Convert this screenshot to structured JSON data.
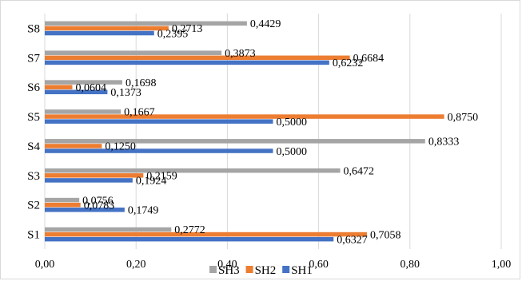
{
  "chart_data": {
    "type": "bar",
    "orientation": "horizontal",
    "categories": [
      "S1",
      "S2",
      "S3",
      "S4",
      "S5",
      "S6",
      "S7",
      "S8"
    ],
    "series": [
      {
        "name": "SH3",
        "color": "#a5a5a5",
        "values": [
          0.2772,
          0.0756,
          0.6472,
          0.8333,
          0.1667,
          0.1698,
          0.3873,
          0.4429
        ],
        "labels": [
          "0,2772",
          "0,0756",
          "0,6472",
          "0,8333",
          "0,1667",
          "0,1698",
          "0,3873",
          "0,4429"
        ]
      },
      {
        "name": "SH2",
        "color": "#ed7d31",
        "values": [
          0.7058,
          0.0783,
          0.2159,
          0.125,
          0.875,
          0.0604,
          0.6684,
          0.2713
        ],
        "labels": [
          "0,7058",
          "0,0783",
          "0,2159",
          "0,1250",
          "0,8750",
          "0,0604",
          "0,6684",
          "0,2713"
        ]
      },
      {
        "name": "SH1",
        "color": "#4472c4",
        "values": [
          0.6327,
          0.1749,
          0.1924,
          0.5,
          0.5,
          0.1373,
          0.6232,
          0.2395
        ],
        "labels": [
          "0,6327",
          "0,1749",
          "0,1924",
          "0,5000",
          "0,5000",
          "0,1373",
          "0,6232",
          "0,2395"
        ]
      }
    ],
    "xlim": [
      0,
      1.0
    ],
    "xticks": [
      0,
      0.2,
      0.4,
      0.6,
      0.8,
      1.0
    ],
    "xtick_labels": [
      "0,00",
      "0,20",
      "0,40",
      "0,60",
      "0,80",
      "1,00"
    ],
    "grid": "vertical",
    "legend_position": "bottom",
    "title": "",
    "xlabel": "",
    "ylabel": ""
  }
}
